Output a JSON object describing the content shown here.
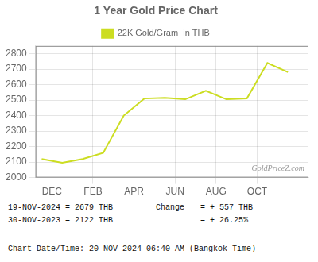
{
  "chart_data": {
    "type": "line",
    "title": "1 Year Gold Price Chart",
    "x": [
      0,
      1,
      2,
      3,
      4,
      5,
      6,
      7,
      8,
      9,
      10,
      11,
      12
    ],
    "series": [
      {
        "name": "22K Gold/Gram  in THB",
        "color": "#ccdd22",
        "values": [
          2120,
          2095,
          2120,
          2160,
          2400,
          2510,
          2515,
          2505,
          2560,
          2505,
          2510,
          2740,
          2680
        ]
      }
    ],
    "xlim": [
      -0.3,
      13.0
    ],
    "xticks": [
      {
        "value": 0.5,
        "label": "DEC"
      },
      {
        "value": 2.5,
        "label": "FEB"
      },
      {
        "value": 4.5,
        "label": "APR"
      },
      {
        "value": 6.5,
        "label": "JUN"
      },
      {
        "value": 8.5,
        "label": "AUG"
      },
      {
        "value": 10.5,
        "label": "OCT"
      }
    ],
    "ylim": [
      2000,
      2850
    ],
    "yticks": [
      2000,
      2100,
      2200,
      2300,
      2400,
      2500,
      2600,
      2700,
      2800
    ],
    "grid": true,
    "legend": "top",
    "annotations": [
      "GoldPriceZ.com",
      "19-NOV-2024 = 2679 THB",
      "30-NOV-2023 = 2122 THB",
      "Change",
      "= + 557 THB",
      "= + 26.25%",
      "Chart Date/Time: 20-NOV-2024 06:40 AM (Bangkok Time)"
    ]
  }
}
